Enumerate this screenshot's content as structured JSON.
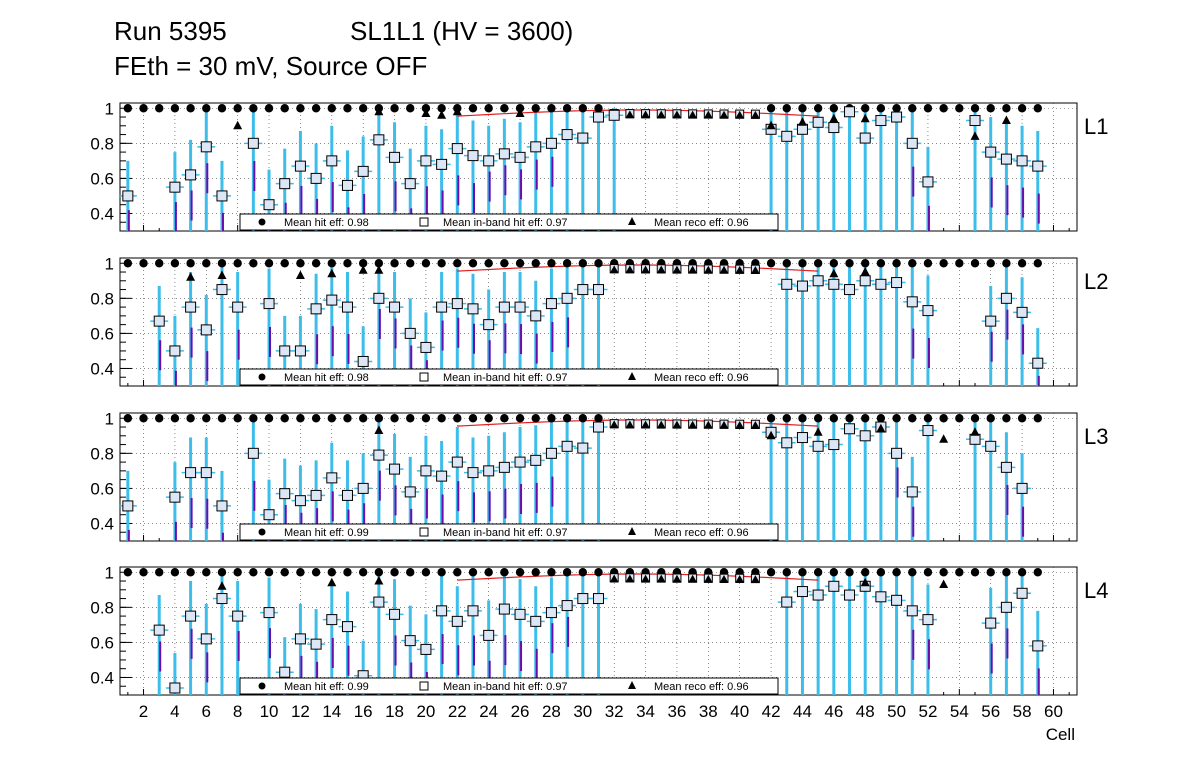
{
  "header": {
    "run": "Run 5395",
    "chamber": "SL1L1 (HV = 3600)",
    "conditions": "FEth = 30 mV, Source OFF"
  },
  "colors": {
    "hit": "#000000",
    "inband_fill": "#dde6f5",
    "error_bar": "#3cbdea",
    "reco_error": "#6a0dad",
    "reco_line": "#e02020",
    "grid": "#444444"
  },
  "chart_data": {
    "type": "scatter",
    "xlabel": "Cell",
    "ylim": [
      0.3,
      1.03
    ],
    "xlim": [
      0.5,
      61.5
    ],
    "x_ticks": [
      2,
      4,
      6,
      8,
      10,
      12,
      14,
      16,
      18,
      20,
      22,
      24,
      26,
      28,
      30,
      32,
      34,
      36,
      38,
      40,
      42,
      44,
      46,
      48,
      50,
      52,
      54,
      56,
      58,
      60
    ],
    "y_ticks": [
      0.4,
      0.6,
      0.8,
      1
    ],
    "panels": [
      {
        "label": "L1",
        "legend": [
          "Mean hit  eff: 0.98",
          "Mean in-band hit eff: 0.97",
          "Mean reco eff: 0.96"
        ],
        "inband": {
          "x": [
            1,
            4,
            5,
            6,
            7,
            9,
            10,
            11,
            12,
            13,
            14,
            15,
            16,
            17,
            18,
            19,
            20,
            21,
            22,
            23,
            24,
            25,
            26,
            27,
            28,
            29,
            30,
            31,
            32,
            42,
            43,
            44,
            45,
            46,
            47,
            48,
            49,
            50,
            51,
            52,
            55,
            56,
            57,
            58,
            59
          ],
          "y": [
            0.5,
            0.55,
            0.62,
            0.78,
            0.5,
            0.8,
            0.45,
            0.57,
            0.67,
            0.6,
            0.7,
            0.56,
            0.64,
            0.82,
            0.72,
            0.57,
            0.7,
            0.68,
            0.77,
            0.73,
            0.7,
            0.74,
            0.72,
            0.78,
            0.8,
            0.85,
            0.83,
            0.95,
            0.96,
            0.88,
            0.84,
            0.88,
            0.92,
            0.89,
            0.98,
            0.83,
            0.93,
            0.95,
            0.8,
            0.58,
            0.93,
            0.75,
            0.71,
            0.7,
            0.67
          ]
        },
        "reco": {
          "x": [
            8,
            17,
            20,
            21,
            22,
            26,
            42,
            44,
            46,
            48,
            55,
            57
          ],
          "y": [
            0.9,
            0.98,
            0.97,
            0.96,
            0.98,
            0.97,
            0.9,
            0.92,
            0.94,
            0.94,
            0.84,
            0.93
          ]
        }
      },
      {
        "label": "L2",
        "legend": [
          "Mean hit  eff: 0.98",
          "Mean in-band hit eff: 0.97",
          "Mean reco eff: 0.96"
        ],
        "inband": {
          "x": [
            3,
            4,
            5,
            6,
            7,
            8,
            10,
            11,
            12,
            13,
            14,
            15,
            16,
            17,
            18,
            19,
            20,
            21,
            22,
            23,
            24,
            25,
            26,
            27,
            28,
            29,
            30,
            31,
            43,
            44,
            45,
            46,
            47,
            48,
            49,
            50,
            51,
            52,
            56,
            57,
            58,
            59
          ],
          "y": [
            0.67,
            0.5,
            0.75,
            0.62,
            0.85,
            0.75,
            0.77,
            0.5,
            0.5,
            0.74,
            0.79,
            0.75,
            0.44,
            0.8,
            0.75,
            0.6,
            0.52,
            0.75,
            0.77,
            0.74,
            0.65,
            0.75,
            0.75,
            0.7,
            0.77,
            0.8,
            0.85,
            0.85,
            0.88,
            0.87,
            0.9,
            0.88,
            0.85,
            0.9,
            0.88,
            0.89,
            0.78,
            0.73,
            0.67,
            0.8,
            0.72,
            0.43
          ]
        },
        "reco": {
          "x": [
            5,
            7,
            12,
            14,
            16,
            17,
            46,
            48
          ],
          "y": [
            0.92,
            0.93,
            0.93,
            0.94,
            0.96,
            0.96,
            0.94,
            0.95
          ]
        }
      },
      {
        "label": "L3",
        "legend": [
          "Mean hit  eff: 0.99",
          "Mean in-band hit eff: 0.97",
          "Mean reco eff: 0.96"
        ],
        "inband": {
          "x": [
            1,
            4,
            5,
            6,
            7,
            9,
            10,
            11,
            12,
            13,
            14,
            15,
            16,
            17,
            18,
            19,
            20,
            21,
            22,
            23,
            24,
            25,
            26,
            27,
            28,
            29,
            30,
            31,
            42,
            43,
            44,
            45,
            46,
            47,
            48,
            49,
            50,
            51,
            52,
            55,
            56,
            57,
            58
          ],
          "y": [
            0.5,
            0.55,
            0.69,
            0.69,
            0.5,
            0.8,
            0.45,
            0.57,
            0.53,
            0.56,
            0.66,
            0.56,
            0.6,
            0.79,
            0.71,
            0.58,
            0.7,
            0.67,
            0.75,
            0.69,
            0.7,
            0.72,
            0.75,
            0.76,
            0.8,
            0.84,
            0.83,
            0.95,
            0.92,
            0.86,
            0.89,
            0.84,
            0.85,
            0.94,
            0.9,
            0.95,
            0.8,
            0.58,
            0.93,
            0.88,
            0.84,
            0.72,
            0.6
          ]
        },
        "reco": {
          "x": [
            17,
            42,
            45,
            49,
            53,
            55
          ],
          "y": [
            0.93,
            0.9,
            0.92,
            0.94,
            0.88,
            0.92
          ]
        }
      },
      {
        "label": "L4",
        "legend": [
          "Mean hit  eff: 0.99",
          "Mean in-band hit eff: 0.97",
          "Mean reco eff: 0.96"
        ],
        "inband": {
          "x": [
            3,
            4,
            5,
            6,
            7,
            8,
            10,
            11,
            12,
            13,
            14,
            15,
            16,
            17,
            18,
            19,
            20,
            21,
            22,
            23,
            24,
            25,
            26,
            27,
            28,
            29,
            30,
            31,
            43,
            44,
            45,
            46,
            47,
            48,
            49,
            50,
            51,
            52,
            56,
            57,
            58,
            59
          ],
          "y": [
            0.67,
            0.34,
            0.75,
            0.62,
            0.85,
            0.75,
            0.77,
            0.43,
            0.62,
            0.59,
            0.73,
            0.69,
            0.41,
            0.83,
            0.76,
            0.61,
            0.56,
            0.78,
            0.72,
            0.78,
            0.64,
            0.79,
            0.76,
            0.72,
            0.77,
            0.81,
            0.85,
            0.85,
            0.83,
            0.89,
            0.87,
            0.92,
            0.87,
            0.92,
            0.86,
            0.84,
            0.78,
            0.73,
            0.71,
            0.8,
            0.88,
            0.58
          ]
        },
        "reco": {
          "x": [
            7,
            14,
            17,
            48,
            53
          ],
          "y": [
            0.92,
            0.94,
            0.95,
            0.94,
            0.93
          ]
        }
      }
    ]
  }
}
